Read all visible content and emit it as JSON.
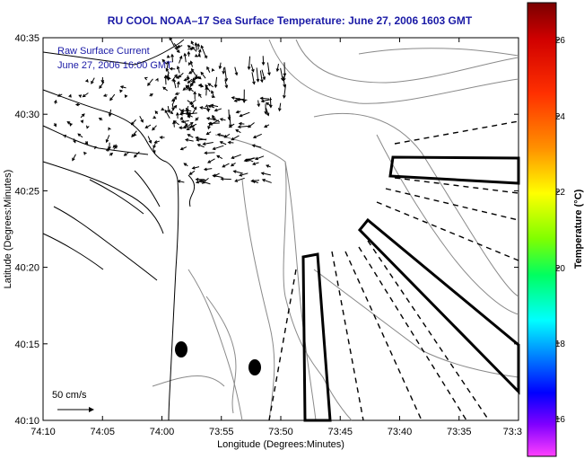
{
  "title": "RU COOL  NOAA–17  Sea Surface Temperature:  June 27, 2006 1603 GMT",
  "legend": {
    "line1": "Raw Surface Current",
    "line2": "June 27, 2006 16:00 GMT",
    "scale_label": "50 cm/s"
  },
  "axes": {
    "xlabel": "Longitude (Degrees:Minutes)",
    "ylabel": "Latitude (Degrees:Minutes)",
    "xticks": [
      "74:10",
      "74:05",
      "74:00",
      "73:55",
      "73:50",
      "73:45",
      "73:40",
      "73:35",
      "73:3"
    ],
    "yticks": [
      "40:35",
      "40:30",
      "40:25",
      "40:20",
      "40:15",
      "40:10"
    ]
  },
  "colorbar": {
    "label": "Temperature (°C)",
    "ticks": [
      "26",
      "24",
      "22",
      "20",
      "18",
      "16"
    ],
    "colors": [
      "#8b0000",
      "#ff0000",
      "#ff8000",
      "#ffff00",
      "#80ff00",
      "#00ff80",
      "#00ffff",
      "#0080ff",
      "#0000ff",
      "#8000ff",
      "#ff00ff"
    ]
  }
}
